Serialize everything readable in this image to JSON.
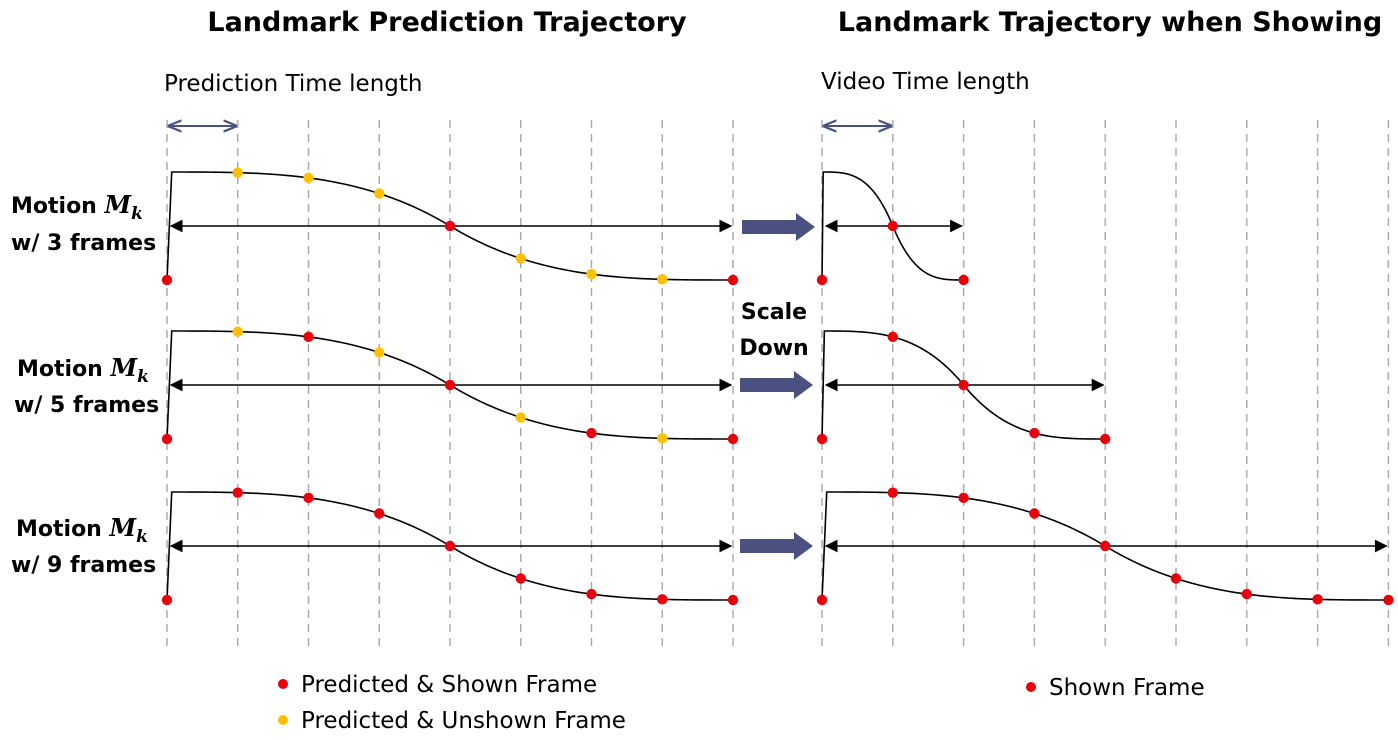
{
  "titles": {
    "left": "Landmark Prediction Trajectory",
    "right": "Landmark Trajectory when Showing"
  },
  "subtitles": {
    "left": "Prediction Time length",
    "right": "Video Time length"
  },
  "rows": [
    {
      "line1": "Motion",
      "sym": "M",
      "symsub": "k",
      "line2": "w/ 3 frames",
      "left_points": [
        "red",
        "yellow",
        "yellow",
        "yellow",
        "red",
        "yellow",
        "yellow",
        "yellow",
        "red"
      ],
      "right_points": 3
    },
    {
      "line1": "Motion",
      "sym": "M",
      "symsub": "k",
      "line2": "w/ 5 frames",
      "left_points": [
        "red",
        "yellow",
        "red",
        "yellow",
        "red",
        "yellow",
        "red",
        "yellow",
        "red"
      ],
      "right_points": 5
    },
    {
      "line1": "Motion",
      "sym": "M",
      "symsub": "k",
      "line2": "w/ 9 frames",
      "left_points": [
        "red",
        "red",
        "red",
        "red",
        "red",
        "red",
        "red",
        "red",
        "red"
      ],
      "right_points": 9
    }
  ],
  "middle": {
    "line1": "Scale",
    "line2": "Down"
  },
  "legend": {
    "shown": "Predicted & Shown Frame",
    "unshown": "Predicted & Unshown Frame",
    "right_shown": "Shown Frame"
  },
  "colors": {
    "shown": "#e8000b",
    "unshown": "#ffc000",
    "arrow": "#4a5080",
    "gridline": "#a6a6a6"
  }
}
